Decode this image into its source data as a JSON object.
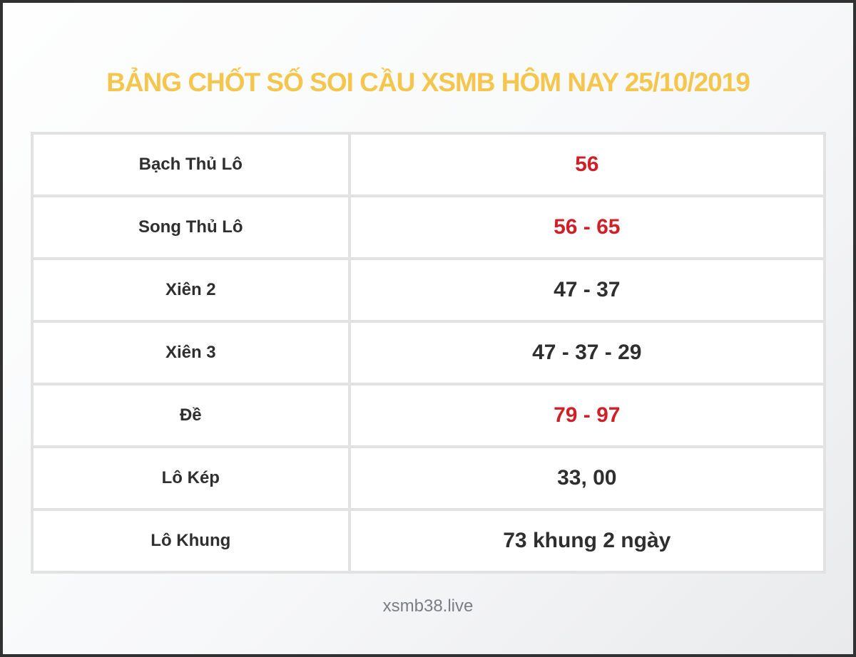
{
  "page": {
    "title": "BẢNG CHỐT SỐ SOI CẦU XSMB HÔM NAY 25/10/2019",
    "footer": "xsmb38.live"
  },
  "table": {
    "rows": [
      {
        "label": "Bạch Thủ Lô",
        "value": "56",
        "highlight": true
      },
      {
        "label": "Song Thủ Lô",
        "value": "56 - 65",
        "highlight": true
      },
      {
        "label": "Xiên 2",
        "value": "47 - 37",
        "highlight": false
      },
      {
        "label": "Xiên 3",
        "value": "47 - 37 - 29",
        "highlight": false
      },
      {
        "label": "Đề",
        "value": "79 - 97",
        "highlight": true
      },
      {
        "label": "Lô Kép",
        "value": "33, 00",
        "highlight": false
      },
      {
        "label": "Lô Khung",
        "value": "73 khung 2 ngày",
        "highlight": false
      }
    ]
  },
  "colors": {
    "title_yellow": "#f4c64e",
    "highlight_red": "#d01f26",
    "text_dark": "#2f2f2f",
    "footer_gray": "#7c7d80",
    "table_border": "#e2e2e3",
    "frame_border": "#313131"
  }
}
